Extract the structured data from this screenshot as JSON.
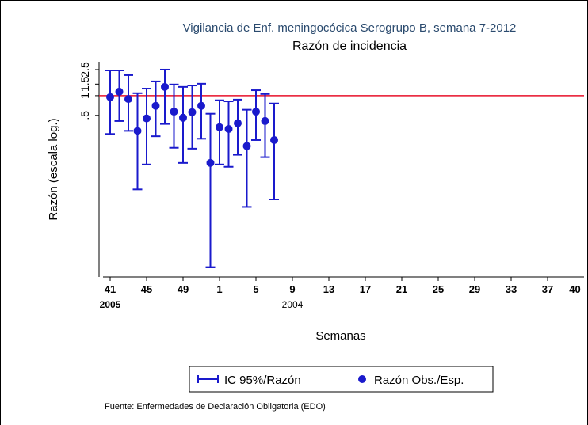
{
  "chart_data": {
    "type": "errorbar",
    "title": "Vigilancia de Enf. meningocócica Serogrupo B, semana 7-2012",
    "subtitle": "Razón de incidencia",
    "y_label": "Razón (escala log.)",
    "x_label": "Semanas",
    "source": "Fuente: Enfermedades de Declaración Obligatoria (EDO)",
    "categories": [
      "41",
      null,
      null,
      null,
      "45",
      null,
      null,
      null,
      "49",
      null,
      null,
      null,
      "1",
      null,
      null,
      null,
      "5",
      null,
      null,
      null,
      "9",
      null,
      null,
      null,
      "13",
      null,
      null,
      null,
      "17",
      null,
      null,
      null,
      "21",
      null,
      null,
      null,
      "25",
      null,
      null,
      null,
      "29",
      null,
      null,
      null,
      "33",
      null,
      null,
      null,
      "37",
      null,
      null,
      "40"
    ],
    "year_labels": [
      {
        "index": 0,
        "label": "2005"
      },
      {
        "index": 20,
        "label": "2004"
      }
    ],
    "series": [
      {
        "name": "Razón Obs./Esp.",
        "color": "#1a1acc",
        "values": [
          0.95,
          1.15,
          0.89,
          0.29,
          0.45,
          0.7,
          1.36,
          0.57,
          0.46,
          0.56,
          0.7,
          0.094,
          0.33,
          0.31,
          0.38,
          0.17,
          0.57,
          0.41,
          0.21,
          null,
          null,
          null,
          null,
          null,
          null,
          null,
          null,
          null,
          null,
          null,
          null,
          null,
          null,
          null,
          null,
          null,
          null,
          null,
          null,
          null,
          null,
          null,
          null,
          null,
          null,
          null,
          null,
          null,
          null,
          null,
          null,
          null
        ]
      },
      {
        "name": "IC 95%/Razón",
        "color": "#1a1acc",
        "lower": [
          0.26,
          0.41,
          0.29,
          0.037,
          0.089,
          0.24,
          0.37,
          0.16,
          0.094,
          0.155,
          0.22,
          0.0024,
          0.089,
          0.082,
          0.125,
          0.02,
          0.21,
          0.115,
          0.026,
          null,
          null,
          null,
          null,
          null,
          null,
          null,
          null,
          null,
          null,
          null,
          null,
          null,
          null,
          null,
          null,
          null,
          null,
          null,
          null,
          null,
          null,
          null,
          null,
          null,
          null,
          null,
          null,
          null,
          null,
          null,
          null,
          null
        ],
        "upper": [
          2.43,
          2.43,
          2.06,
          1.09,
          1.28,
          1.65,
          2.5,
          1.48,
          1.36,
          1.43,
          1.52,
          0.53,
          0.85,
          0.82,
          0.87,
          0.61,
          1.21,
          1.06,
          0.76,
          null,
          null,
          null,
          null,
          null,
          null,
          null,
          null,
          null,
          null,
          null,
          null,
          null,
          null,
          null,
          null,
          null,
          null,
          null,
          null,
          null,
          null,
          null,
          null,
          null,
          null,
          null,
          null,
          null,
          null,
          null,
          null,
          null
        ]
      }
    ],
    "refline": 1,
    "refline_color": "#e8102a",
    "ylog": true,
    "ylim": [
      0.0017,
      3.3
    ],
    "yticks": [
      {
        "value": 0.5,
        "label": ".5"
      },
      1,
      1.5,
      2.5
    ]
  }
}
